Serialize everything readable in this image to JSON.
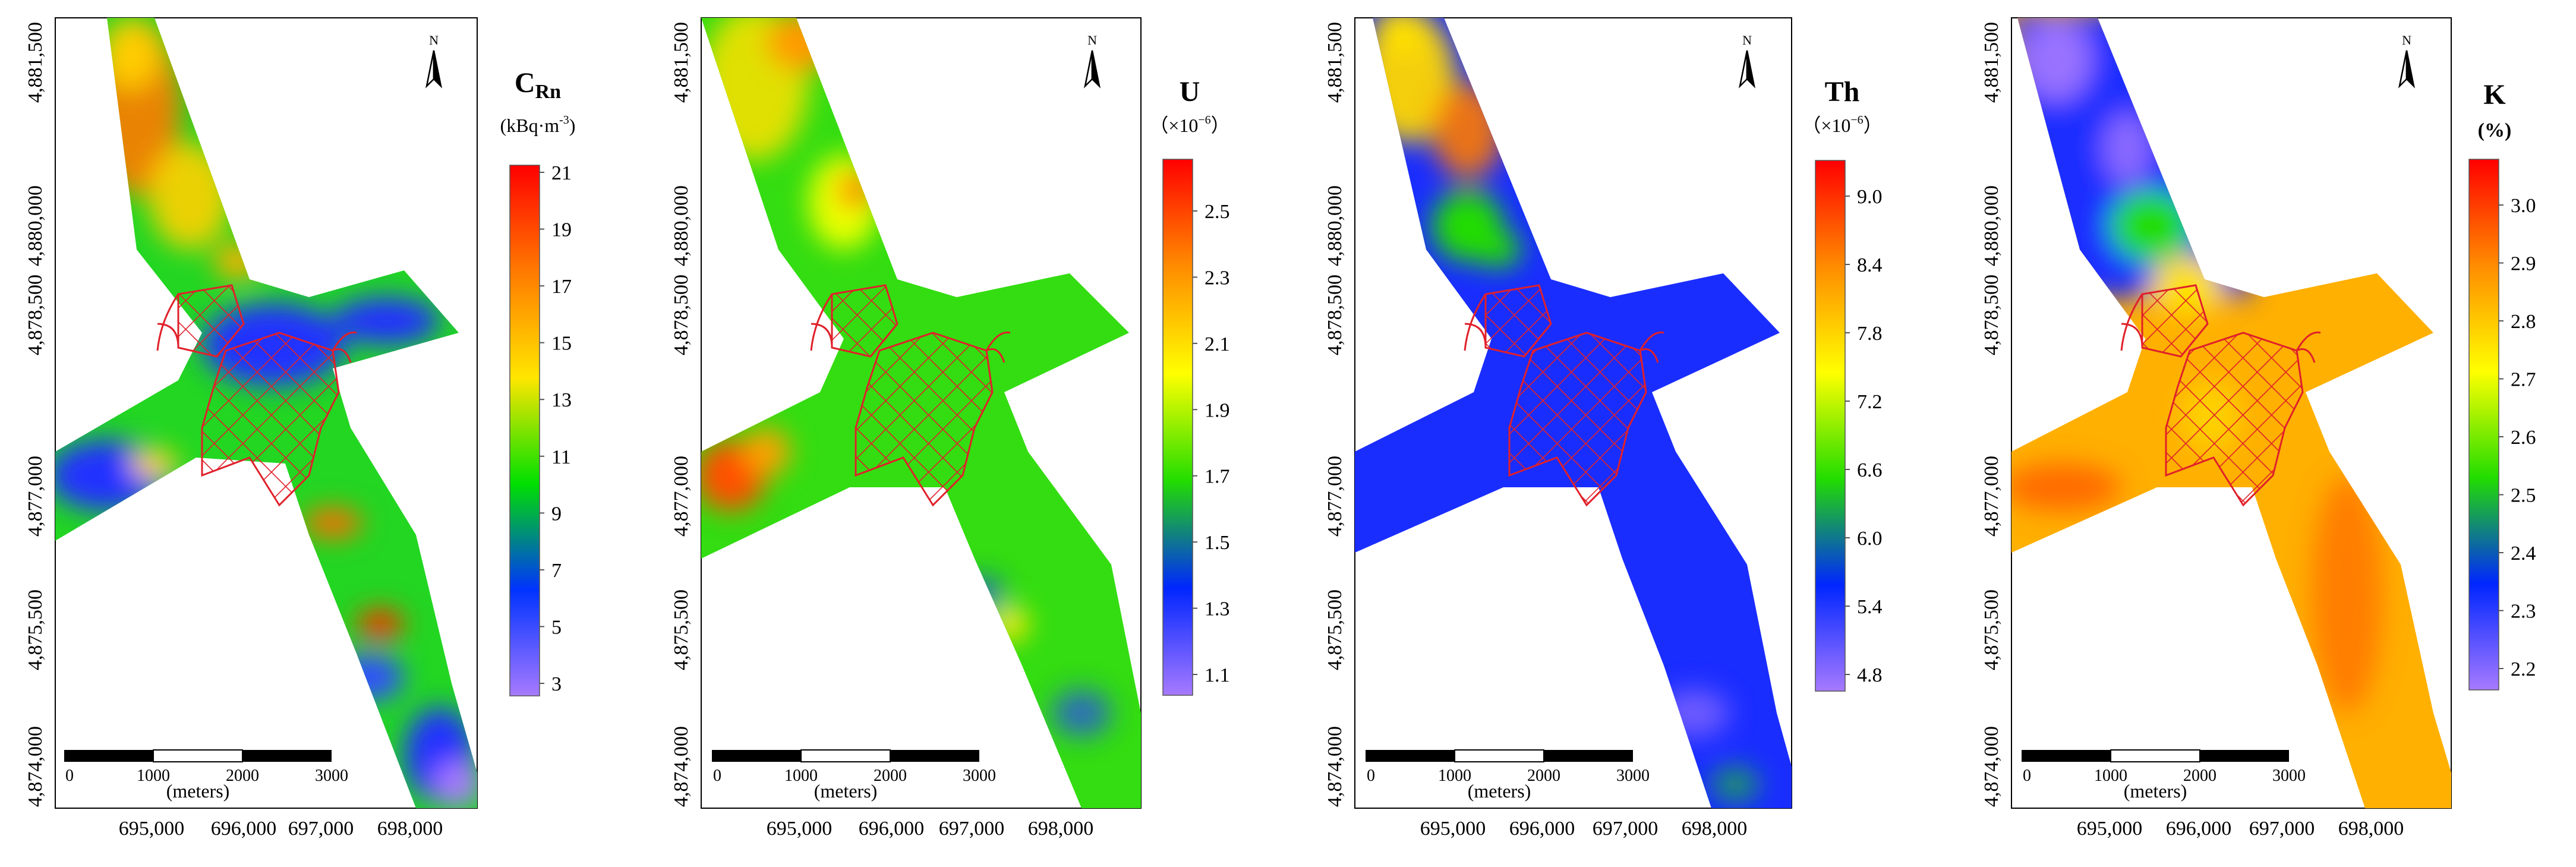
{
  "x_ticks": [
    "695,000",
    "696,000",
    "697,000",
    "698,000"
  ],
  "y_ticks": [
    "4,874,000",
    "4,875,500",
    "4,877,000",
    "4,878,500",
    "4,880,000",
    "4,881,500"
  ],
  "north_label": "N",
  "scale_bar": {
    "ticks": [
      "0",
      "1000",
      "2000",
      "3000"
    ],
    "unit_label": "(meters)"
  },
  "panels": [
    {
      "id": "rn",
      "title_main": "C",
      "title_sub": "Rn",
      "unit": "(kBq·m",
      "unit_exp": "-3",
      "unit_close": ")",
      "legend_ticks": [
        "21",
        "19",
        "17",
        "15",
        "13",
        "11",
        "9",
        "7",
        "5",
        "3"
      ],
      "legend_colors": [
        "#ff0000",
        "#ff7a00",
        "#ffe600",
        "#00e000",
        "#0033ff",
        "#a77aff"
      ],
      "corridor_dominant": "mixed: orange-yellow NW arm, blue NE/SW arms, green-blue SE arm"
    },
    {
      "id": "u",
      "title_main": "U",
      "unit": "（×10",
      "unit_exp": "−6",
      "unit_close": "）",
      "legend_ticks": [
        "2.5",
        "2.3",
        "2.1",
        "1.9",
        "1.7",
        "1.5",
        "1.3",
        "1.1"
      ],
      "legend_colors": [
        "#ff0000",
        "#ff8c00",
        "#ffff00",
        "#22dd00",
        "#0026ff",
        "#a77aff"
      ],
      "corridor_dominant": "green"
    },
    {
      "id": "th",
      "title_main": "Th",
      "unit": "（×10",
      "unit_exp": "−6",
      "unit_close": "）",
      "legend_ticks": [
        "9.0",
        "8.4",
        "7.8",
        "7.2",
        "6.6",
        "6.0",
        "5.4",
        "4.8"
      ],
      "legend_colors": [
        "#ff0000",
        "#ff8c00",
        "#ffff00",
        "#22dd00",
        "#0026ff",
        "#a77aff"
      ],
      "corridor_dominant": "blue"
    },
    {
      "id": "k",
      "title_main": "K",
      "unit": "(%)",
      "legend_ticks": [
        "3.0",
        "2.9",
        "2.8",
        "2.7",
        "2.6",
        "2.5",
        "2.4",
        "2.3",
        "2.2"
      ],
      "legend_colors": [
        "#ff0000",
        "#ff8c00",
        "#ffff00",
        "#22dd00",
        "#0026ff",
        "#a77aff"
      ],
      "corridor_dominant": "orange"
    }
  ]
}
